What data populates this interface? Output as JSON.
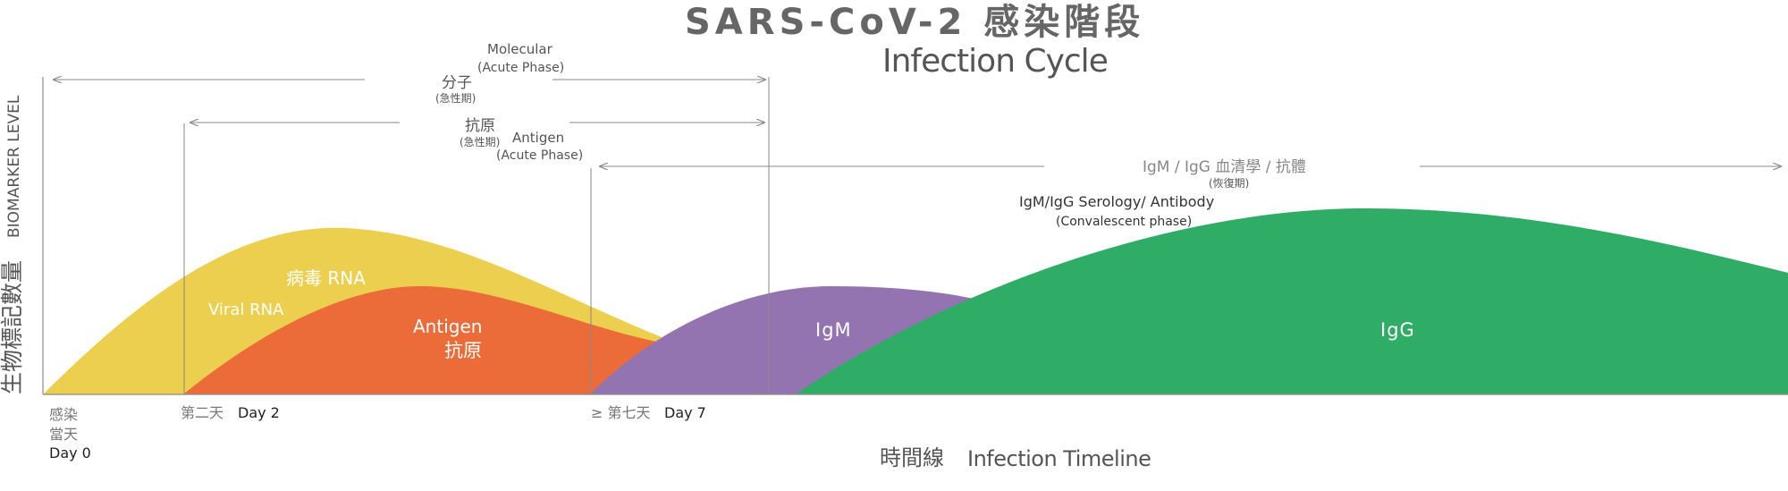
{
  "title": {
    "zh": "SARS-CoV-2 感染階段",
    "en": "Infection Cycle"
  },
  "y_axis": {
    "en": "BIOMARKER LEVEL",
    "zh": "生物標記數量"
  },
  "x_axis": {
    "zh": "時間線",
    "en": "Infection Timeline"
  },
  "time_markers": {
    "day0_zh_line1": "感染",
    "day0_zh_line2": "當天",
    "day0_en": "Day 0",
    "day2_zh": "第二天",
    "day2_en": "Day 2",
    "day7_zh": "≥ 第七天",
    "day7_en": "Day 7"
  },
  "phases": {
    "molecular": {
      "en": "Molecular",
      "en_sub": "(Acute Phase)",
      "zh": "分子",
      "zh_sub": "(急性期)"
    },
    "antigen": {
      "zh": "抗原",
      "zh_sub": "(急性期)",
      "en": "Antigen",
      "en_sub": "(Acute Phase)"
    },
    "serology": {
      "zh": "IgM / IgG 血清學 / 抗體",
      "zh_sub": "(恢復期)",
      "en": "IgM/IgG Serology/ Antibody",
      "en_sub": "(Convalescent phase)"
    }
  },
  "curves": {
    "viral_rna": {
      "zh": "病毒 RNA",
      "en": "Viral RNA",
      "color": "#ECCF4E"
    },
    "antigen": {
      "en": "Antigen",
      "zh": "抗原",
      "color": "#EC6C39"
    },
    "igm": {
      "label": "IgM",
      "color": "#9474B0"
    },
    "igg": {
      "label": "IgG",
      "color": "#2FAC66"
    }
  },
  "colors": {
    "line": "#8a8a8a",
    "text": "#555555",
    "title": "#666666"
  }
}
